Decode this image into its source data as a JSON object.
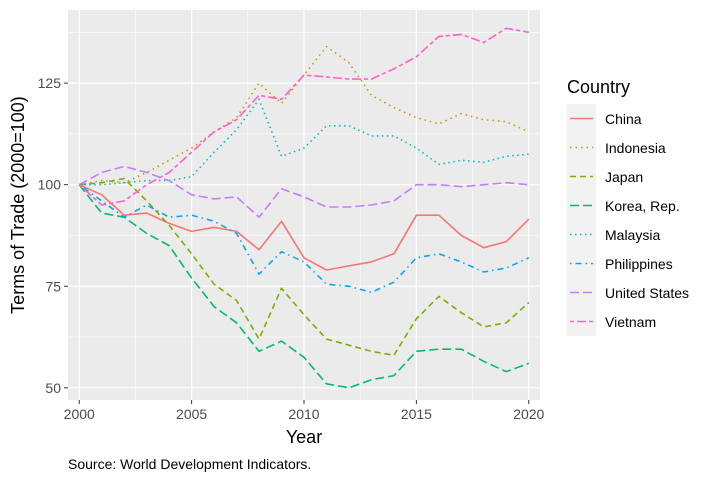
{
  "chart_data": {
    "type": "line",
    "xlabel": "Year",
    "ylabel": "Terms of Trade (2000=100)",
    "xlim": [
      1999.5,
      2020.5
    ],
    "ylim": [
      47,
      143
    ],
    "x_ticks": [
      2000,
      2005,
      2010,
      2015,
      2020
    ],
    "y_ticks": [
      50,
      75,
      100,
      125
    ],
    "grid": true,
    "legend_title": "Country",
    "legend_position": "right",
    "caption": "Source: World Development Indicators.",
    "x": [
      2000,
      2001,
      2002,
      2003,
      2004,
      2005,
      2006,
      2007,
      2008,
      2009,
      2010,
      2011,
      2012,
      2013,
      2014,
      2015,
      2016,
      2017,
      2018,
      2019,
      2020
    ],
    "series": [
      {
        "name": "China",
        "color": "#F8766D",
        "dash": "solid",
        "values": [
          100,
          97.5,
          92.5,
          93,
          90.5,
          88.5,
          89.5,
          88.5,
          84,
          91,
          82,
          79,
          80,
          81,
          83,
          92.5,
          92.5,
          87.5,
          84.5,
          86,
          91.5
        ]
      },
      {
        "name": "Indonesia",
        "color": "#CD9600",
        "dash": "dotted",
        "values": [
          100,
          101,
          100.5,
          103,
          106,
          109,
          113,
          116.5,
          125,
          120,
          127,
          134,
          130,
          122,
          119,
          116.5,
          115,
          117.5,
          116,
          115.5,
          113
        ]
      },
      {
        "name": "Japan",
        "color": "#7CAE00",
        "dash": "dashed",
        "values": [
          100,
          100.5,
          101.5,
          96,
          90,
          83,
          75.5,
          71.5,
          62,
          74.5,
          68,
          62,
          60.5,
          59,
          58,
          67,
          72.5,
          68.5,
          65,
          66,
          71
        ]
      },
      {
        "name": "Korea, Rep.",
        "color": "#00BE67",
        "dash": "longdash",
        "values": [
          100,
          93,
          92,
          88,
          85,
          77,
          70,
          66,
          59,
          61.5,
          57.5,
          51,
          50,
          52,
          53,
          59,
          59.5,
          59.5,
          56.5,
          54,
          56
        ]
      },
      {
        "name": "Malaysia",
        "color": "#00BFC4",
        "dash": "dotted2",
        "values": [
          100,
          100,
          100.5,
          101,
          101,
          102,
          108,
          113.5,
          121,
          107,
          109,
          114.5,
          114.5,
          112,
          112,
          109,
          105,
          106,
          105.5,
          107,
          107.5
        ]
      },
      {
        "name": "Philippines",
        "color": "#00A9FF",
        "dash": "dotdash",
        "values": [
          100,
          96,
          92,
          95,
          92,
          92.5,
          91,
          88,
          78,
          83.5,
          81,
          75.5,
          75,
          73.5,
          76,
          82,
          83,
          81,
          78.5,
          79.5,
          82
        ]
      },
      {
        "name": "United States",
        "color": "#C77CFF",
        "dash": "longdash",
        "values": [
          100,
          103,
          104.5,
          103,
          101,
          97.5,
          96.5,
          97,
          92,
          99,
          97,
          94.5,
          94.5,
          95,
          96,
          100,
          100,
          99.5,
          100,
          100.5,
          100
        ]
      },
      {
        "name": "Vietnam",
        "color": "#FF61CC",
        "dash": "twodash",
        "values": [
          100,
          95,
          96,
          100,
          103,
          108,
          113,
          116,
          122,
          121,
          127,
          126.5,
          126,
          126,
          128.5,
          131.5,
          136.5,
          137,
          135,
          138.5,
          137.5
        ]
      }
    ]
  }
}
